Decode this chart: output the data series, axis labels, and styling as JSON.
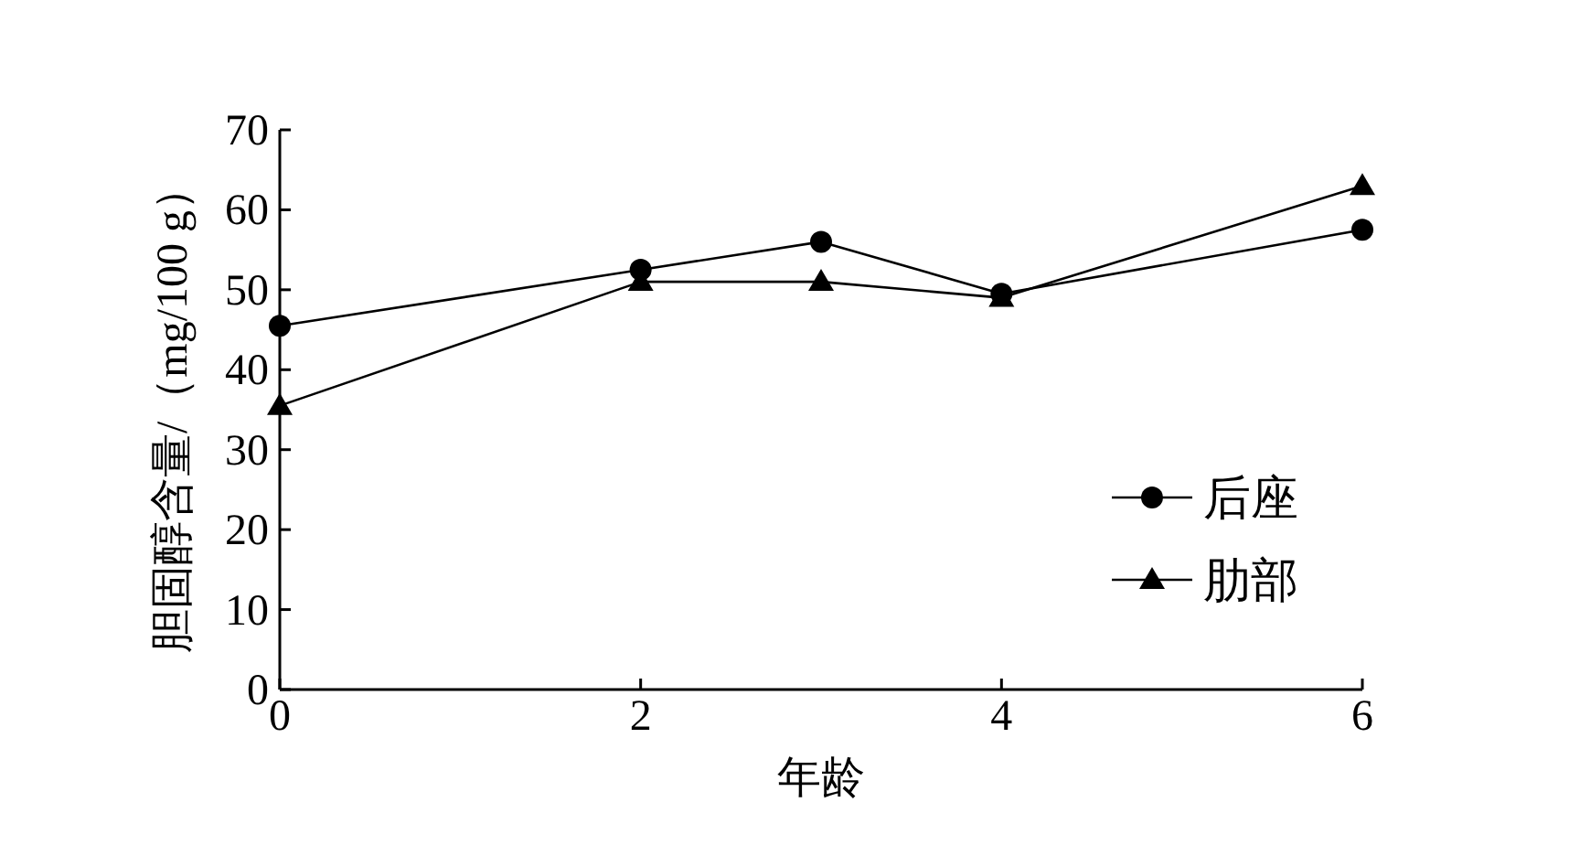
{
  "chart_data": {
    "type": "line",
    "xlabel": "年龄",
    "ylabel": "胆固醇含量/（mg/100 g）",
    "x": [
      0,
      2,
      3,
      4,
      6
    ],
    "series": [
      {
        "name": "后座",
        "color": "#000000",
        "marker": "circle",
        "values": [
          45.5,
          52.5,
          56,
          49.5,
          57.5
        ]
      },
      {
        "name": "肋部",
        "color": "#000000",
        "marker": "triangle",
        "values": [
          35.5,
          51,
          51,
          49,
          63
        ]
      }
    ],
    "xlim": [
      0,
      6
    ],
    "ylim": [
      0,
      70
    ],
    "xticks": [
      0,
      2,
      4,
      6
    ],
    "yticks": [
      0,
      10,
      20,
      30,
      40,
      50,
      60,
      70
    ],
    "legend": "bottom right"
  }
}
